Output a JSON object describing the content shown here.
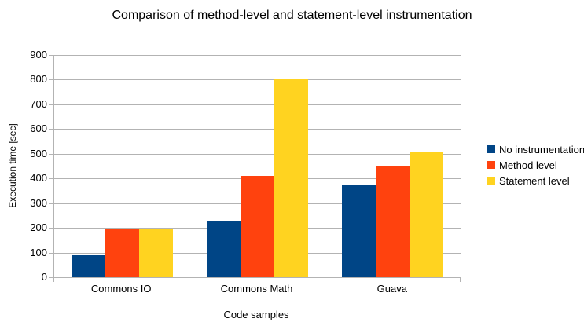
{
  "chart_data": {
    "type": "bar",
    "title": "Comparison of method-level and statement-level instrumentation",
    "xlabel": "Code samples",
    "ylabel": "Execution time [sec]",
    "categories": [
      "Commons IO",
      "Commons Math",
      "Guava"
    ],
    "series": [
      {
        "name": "No instrumentation",
        "color": "#004586",
        "values": [
          90,
          230,
          375
        ]
      },
      {
        "name": "Method level",
        "color": "#FF420E",
        "values": [
          195,
          410,
          450
        ]
      },
      {
        "name": "Statement level",
        "color": "#FFD320",
        "values": [
          195,
          800,
          505
        ]
      }
    ],
    "ylim": [
      0,
      900
    ],
    "ytick_step": 100,
    "ytick_labels": [
      "0",
      "100",
      "200",
      "300",
      "400",
      "500",
      "600",
      "700",
      "800",
      "900"
    ],
    "grid": true,
    "legend_position": "right",
    "colors": {
      "grid": "#b3b3b3",
      "axis": "#b3b3b3",
      "text": "#000000",
      "background": "#ffffff"
    }
  }
}
